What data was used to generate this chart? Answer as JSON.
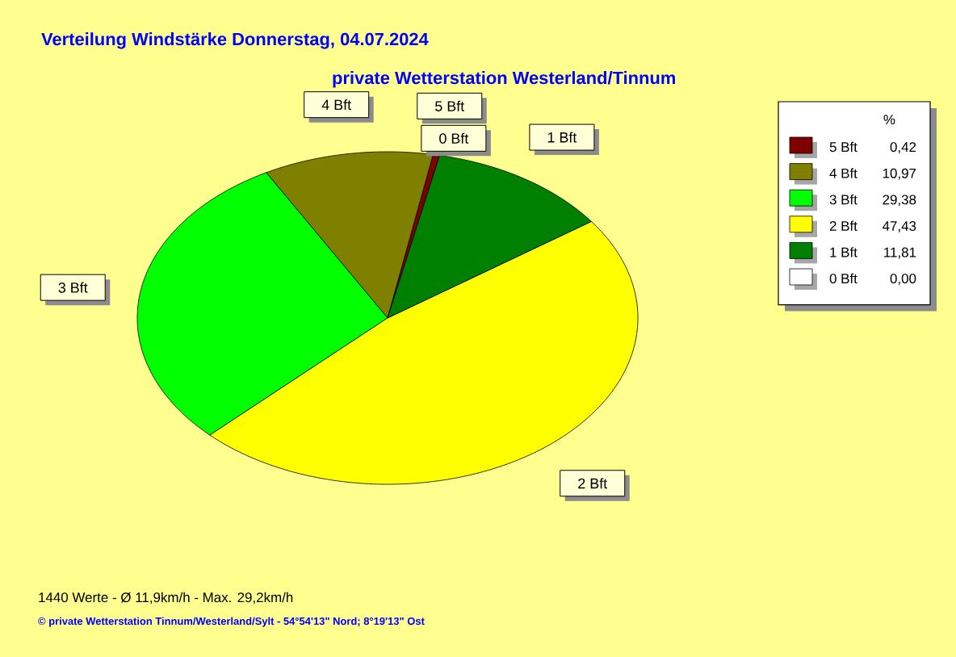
{
  "chart_data": {
    "type": "pie",
    "title": "Verteilung Windstärke  Donnerstag, 04.07.2024",
    "subtitle": "private Wetterstation Westerland/Tinnum",
    "categories": [
      "5 Bft",
      "4 Bft",
      "3 Bft",
      "2 Bft",
      "1 Bft",
      "0 Bft"
    ],
    "values": [
      0.42,
      10.97,
      29.38,
      47.43,
      11.81,
      0.0
    ],
    "value_labels": [
      "0,42",
      "10,97",
      "29,38",
      "47,43",
      "11,81",
      "0,00"
    ],
    "colors": [
      "#800000",
      "#808000",
      "#00ff00",
      "#ffff00",
      "#008000",
      "#ffffff"
    ],
    "legend_title": "%",
    "legend": "top right",
    "annotations": [
      "1440 Werte   -   Ø 11,9km/h  -  Max. 29,2km/h",
      "© private Wetterstation Tinnum/Westerland/Sylt  -  54°54'13\" Nord; 8°19'13\" Ost"
    ]
  }
}
